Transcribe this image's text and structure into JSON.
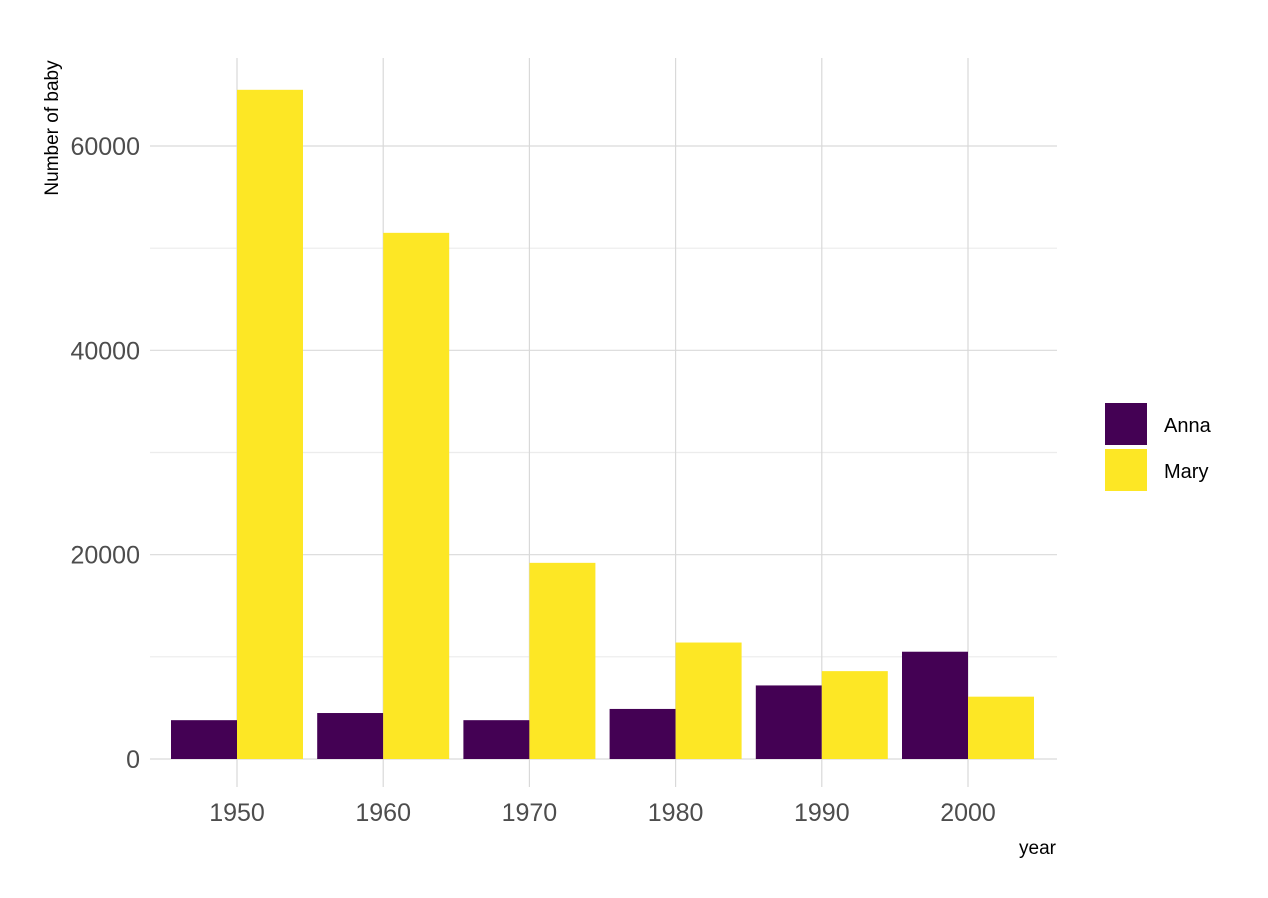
{
  "chart_data": {
    "type": "bar",
    "xlabel": "year",
    "ylabel": "Number of baby",
    "categories": [
      "1950",
      "1960",
      "1970",
      "1980",
      "1990",
      "2000"
    ],
    "series": [
      {
        "name": "Anna",
        "color": "#440154",
        "values": [
          3800,
          4500,
          3800,
          4900,
          7200,
          10500
        ]
      },
      {
        "name": "Mary",
        "color": "#FDE725",
        "values": [
          65500,
          51500,
          19200,
          11400,
          8600,
          6100
        ]
      }
    ],
    "yticks": [
      "0",
      "20000",
      "40000",
      "60000"
    ],
    "ylim": [
      -2800,
      68600
    ],
    "grid": true,
    "legend": "right"
  }
}
